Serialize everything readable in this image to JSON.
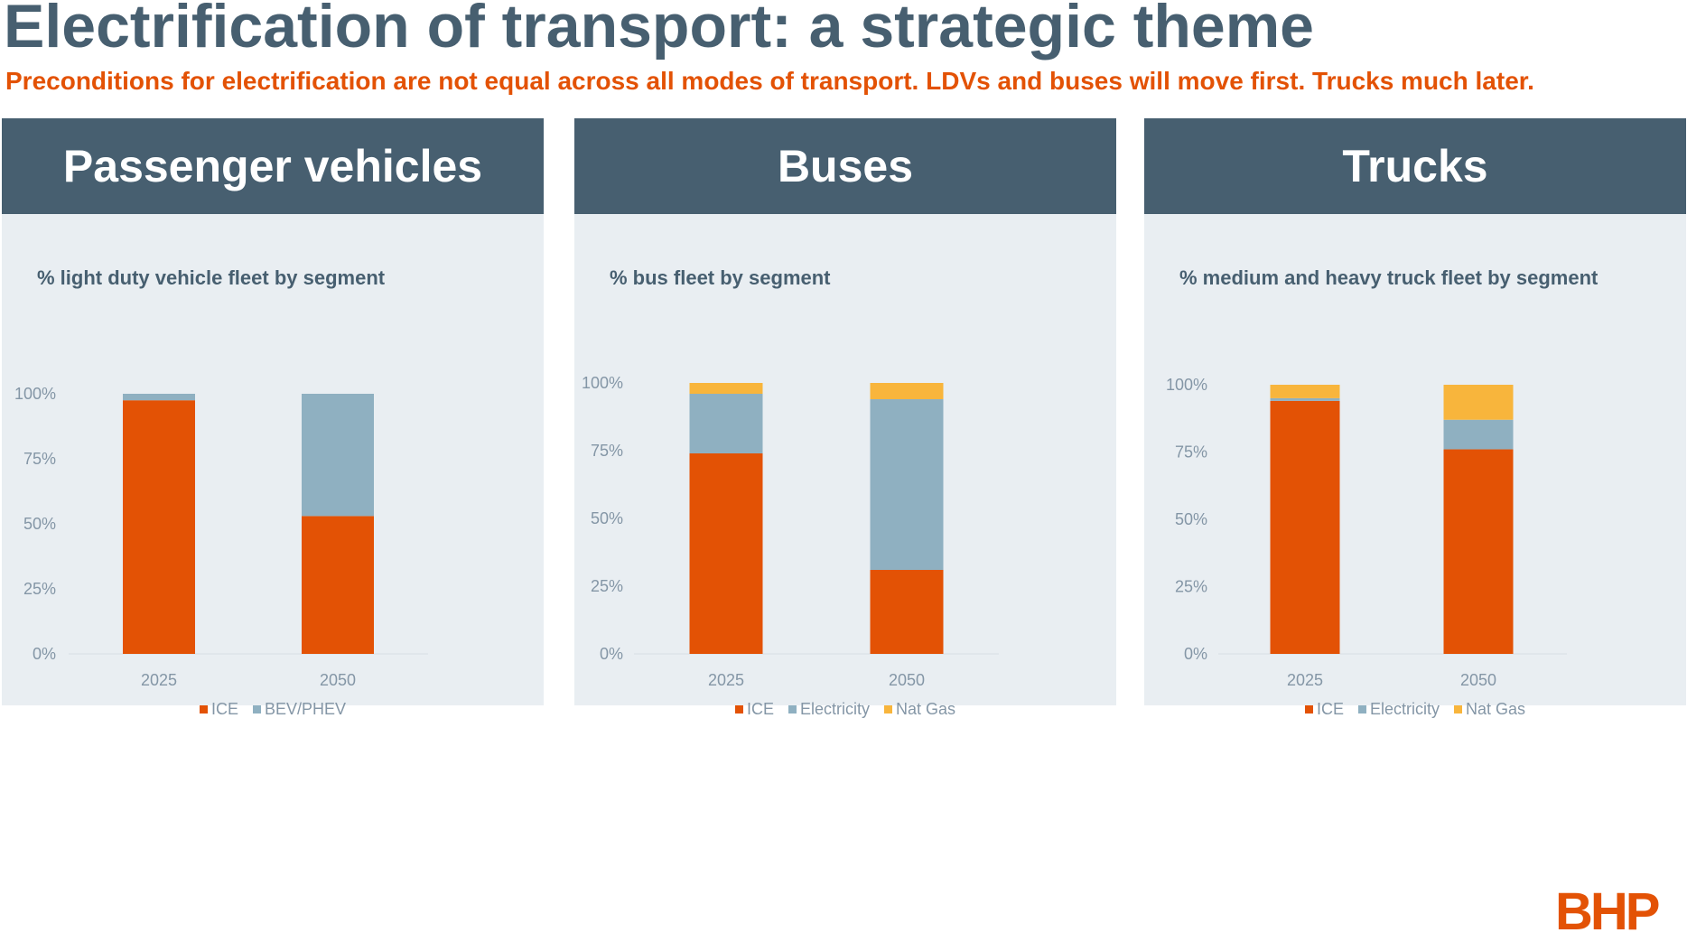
{
  "header": {
    "title": "Electrification of transport: a strategic theme",
    "subtitle": "Preconditions for electrification are not equal across all modes of transport. LDVs and buses will move first. Trucks much later."
  },
  "logo": {
    "text": "BHP"
  },
  "colors": {
    "ICE": "#e35205",
    "BEV/PHEV": "#8fb0c1",
    "Electricity": "#8fb0c1",
    "Nat Gas": "#f8b53c",
    "panel_header": "#475f70",
    "panel_bg": "#e9eef2"
  },
  "panels": [
    {
      "heading": "Passenger vehicles",
      "chart_title": "% light duty vehicle fleet by segment"
    },
    {
      "heading": "Buses",
      "chart_title": "% bus fleet by segment"
    },
    {
      "heading": "Trucks",
      "chart_title": "% medium and heavy truck fleet by segment"
    }
  ],
  "chart_data": [
    {
      "type": "bar",
      "stacked": true,
      "title": "% light duty vehicle fleet by segment",
      "categories": [
        "2025",
        "2050"
      ],
      "series": [
        {
          "name": "ICE",
          "values": [
            97.5,
            53
          ]
        },
        {
          "name": "BEV/PHEV",
          "values": [
            2.5,
            47
          ]
        }
      ],
      "ylim": [
        0,
        100
      ],
      "yticks": [
        "0%",
        "25%",
        "50%",
        "75%",
        "100%"
      ],
      "legend": "bottom"
    },
    {
      "type": "bar",
      "stacked": true,
      "title": "% bus fleet by segment",
      "categories": [
        "2025",
        "2050"
      ],
      "series": [
        {
          "name": "ICE",
          "values": [
            74,
            31
          ]
        },
        {
          "name": "Electricity",
          "values": [
            22,
            63
          ]
        },
        {
          "name": "Nat Gas",
          "values": [
            4,
            6
          ]
        }
      ],
      "ylim": [
        0,
        100
      ],
      "yticks": [
        "0%",
        "25%",
        "50%",
        "75%",
        "100%"
      ],
      "legend": "bottom"
    },
    {
      "type": "bar",
      "stacked": true,
      "title": "% medium and heavy truck fleet by segment",
      "categories": [
        "2025",
        "2050"
      ],
      "series": [
        {
          "name": "ICE",
          "values": [
            94,
            76
          ]
        },
        {
          "name": "Electricity",
          "values": [
            1,
            11
          ]
        },
        {
          "name": "Nat Gas",
          "values": [
            5,
            13
          ]
        }
      ],
      "ylim": [
        0,
        100
      ],
      "yticks": [
        "0%",
        "25%",
        "50%",
        "75%",
        "100%"
      ],
      "legend": "bottom"
    }
  ]
}
